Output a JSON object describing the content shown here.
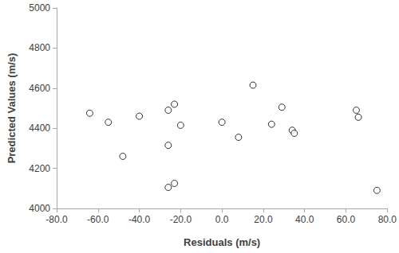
{
  "chart_data": {
    "type": "scatter",
    "x_label": "Residuals (m/s)",
    "y_label": "Predicted Values (m/s)",
    "x": [
      -64,
      -55,
      -48,
      -40,
      -26,
      -26,
      -26,
      -23,
      -23,
      -20,
      0,
      8,
      15,
      24,
      29,
      34,
      35,
      65,
      66,
      75
    ],
    "values": [
      4475,
      4430,
      4260,
      4460,
      4490,
      4315,
      4105,
      4520,
      4125,
      4415,
      4430,
      4355,
      4615,
      4420,
      4505,
      4390,
      4375,
      4490,
      4455,
      4090
    ],
    "color": "#000000",
    "marker": "hollow circle",
    "xlim": [
      -80,
      80
    ],
    "xticks": [
      {
        "value": -80,
        "label": "-80.0"
      },
      {
        "value": -60,
        "label": "-60.0"
      },
      {
        "value": -40,
        "label": "-40.0"
      },
      {
        "value": -20,
        "label": "-20.0"
      },
      {
        "value": 0,
        "label": "0.0"
      },
      {
        "value": 20,
        "label": "20.0"
      },
      {
        "value": 40,
        "label": "40.0"
      },
      {
        "value": 60,
        "label": "60.0"
      },
      {
        "value": 80,
        "label": "80.0"
      }
    ],
    "ylim": [
      4000,
      5000
    ],
    "yticks": [
      4000,
      4200,
      4400,
      4600,
      4800,
      5000
    ],
    "grid": false
  }
}
